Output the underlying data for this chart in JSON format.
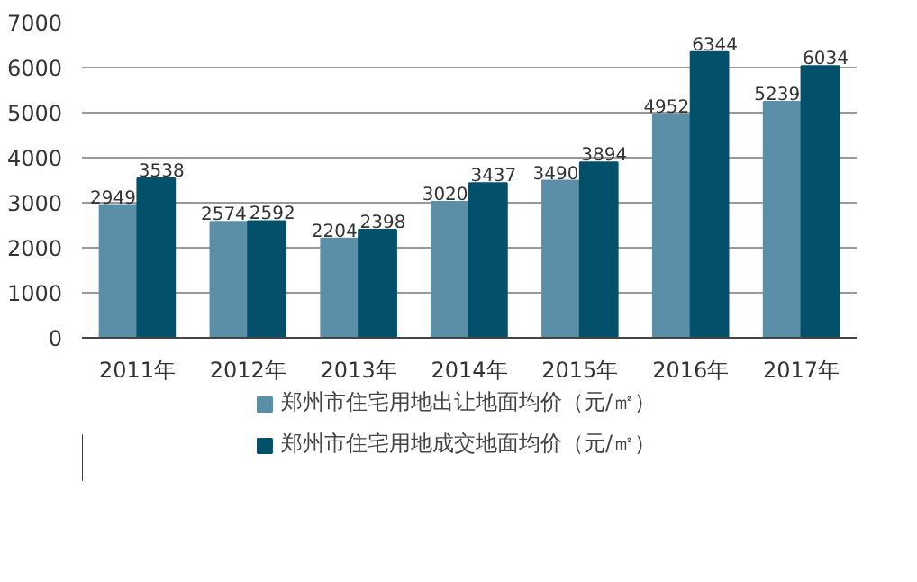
{
  "chart_data": {
    "type": "bar",
    "categories": [
      "2011年",
      "2012年",
      "2013年",
      "2014年",
      "2015年",
      "2016年",
      "2017年"
    ],
    "series": [
      {
        "name": "郑州市住宅用地出让地面均价（元/㎡）",
        "color": "#5b8fa8",
        "values": [
          2949,
          2574,
          2204,
          3020,
          3490,
          4952,
          5239
        ]
      },
      {
        "name": "郑州市住宅用地成交地面均价（元/㎡）",
        "color": "#03506b",
        "values": [
          3538,
          2592,
          2398,
          3437,
          3894,
          6344,
          6034
        ]
      }
    ],
    "ylim": [
      0,
      7000
    ],
    "yticks": [
      0,
      1000,
      2000,
      3000,
      4000,
      5000,
      6000,
      7000
    ],
    "grid": "y",
    "legend": "bottom",
    "data_labels": true
  }
}
